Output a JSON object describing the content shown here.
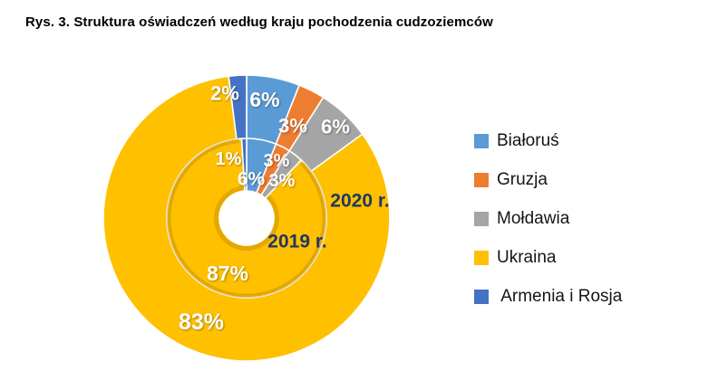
{
  "chart_data": {
    "type": "pie",
    "subtype": "nested-doughnut",
    "title": "Rys. 3. Struktura oświadczeń według kraju pochodzenia cudzoziemców",
    "categories": [
      "Białoruś",
      "Gruzja",
      "Mołdawia",
      "Ukraina",
      "Armenia i Rosja"
    ],
    "colors": [
      "#5B9BD5",
      "#ED7D31",
      "#A5A5A5",
      "#FFC000",
      "#4472C4"
    ],
    "series": [
      {
        "name": "2019 r.",
        "ring": "inner",
        "values": [
          6,
          3,
          3,
          87,
          1
        ],
        "labels": [
          "6%",
          "3%",
          "3%",
          "87%",
          "1%"
        ]
      },
      {
        "name": "2020 r.",
        "ring": "outer",
        "values": [
          6,
          3,
          6,
          83,
          2
        ],
        "labels": [
          "6%",
          "3%",
          "6%",
          "83%",
          "2%"
        ]
      }
    ],
    "legend": {
      "position": "right",
      "labels": [
        "Białoruś",
        "Gruzja",
        "Mołdawia",
        "Ukraina",
        " Armenia i Rosja"
      ]
    },
    "styles": {
      "percent_label_color": "#FFFFFF",
      "year_label_color": "#1F3864",
      "background": "#FFFFFF"
    }
  }
}
